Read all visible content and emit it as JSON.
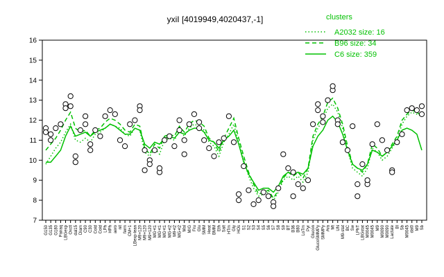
{
  "chart_data": {
    "type": "line",
    "title": "yxiI [4019949,4020437,-1]",
    "xlabel": "",
    "ylabel": "",
    "ylim": [
      7,
      16
    ],
    "yticks": [
      7,
      8,
      9,
      10,
      11,
      12,
      13,
      14,
      15,
      16
    ],
    "x_tick_labels": [
      "G150",
      "G135",
      "G180",
      "Pairaq",
      "LBGexp",
      "Oxctl",
      "dal15",
      "Diam",
      "C90",
      "C30",
      "Cold",
      "Cold",
      "LPh",
      "HPh",
      "aero",
      "nit",
      "ferm",
      "CM+1",
      "LBexp-lean",
      "M9+120",
      "M9+120",
      "M9+120",
      "MG+t1",
      "MG+t1",
      "MG+t1",
      "MG+t2",
      "M9+t2",
      "MG+t2",
      "Mal",
      "M/G",
      "Fru",
      "Glu",
      "SMM",
      "Heat",
      "BMM",
      "Eth",
      "Salt",
      "HTm",
      "Gly",
      "HOs",
      "S1",
      "S2",
      "S3",
      "S4",
      "S5",
      "S6",
      "S7",
      "S8",
      "S9",
      "BT",
      "B36",
      "B80",
      "LoTm",
      "Pyr",
      "Glucon",
      "GlucoSMMPy",
      "SMMPy",
      "Ara",
      "Mt",
      "UN",
      "M9-stat",
      "BC",
      "Sw",
      "LPhT",
      "LBGstat",
      "M0045",
      "M0045",
      "M9",
      "M0090",
      "M0090",
      "Lactate",
      "BI",
      "Sb",
      "M0045",
      "dal0",
      "M9",
      "Sb"
    ],
    "series": [
      {
        "name": "A2032 size: 16",
        "style": "dotted",
        "color": "#00c000",
        "values": [
          9.8,
          10.2,
          10.6,
          10.9,
          11.4,
          11.8,
          11.0,
          10.9,
          11.1,
          10.9,
          11.3,
          11.4,
          11.6,
          11.8,
          11.7,
          11.6,
          11.3,
          11.2,
          11.6,
          11.5,
          10.4,
          10.2,
          10.6,
          10.3,
          11.0,
          11.1,
          11.0,
          11.5,
          11.2,
          11.6,
          11.8,
          11.7,
          11.5,
          10.9,
          10.7,
          10.2,
          10.9,
          11.3,
          11.8,
          10.9,
          10.0,
          9.2,
          8.6,
          8.2,
          8.3,
          8.4,
          8.0,
          8.4,
          9.0,
          9.2,
          9.0,
          9.2,
          8.9,
          9.4,
          11.0,
          11.6,
          12.0,
          12.6,
          12.8,
          12.4,
          11.6,
          10.5,
          9.6,
          9.4,
          9.2,
          9.6,
          10.6,
          10.4,
          10.0,
          10.2,
          10.6,
          11.0,
          11.8,
          12.2,
          12.4,
          12.3,
          12.2
        ]
      },
      {
        "name": "B96 size: 34",
        "style": "dashed",
        "color": "#00c000",
        "values": [
          10.5,
          10.8,
          11.1,
          11.5,
          12.0,
          12.4,
          11.6,
          11.4,
          11.5,
          11.2,
          11.5,
          11.6,
          11.9,
          12.1,
          12.0,
          11.8,
          11.5,
          11.4,
          11.8,
          11.7,
          10.6,
          10.3,
          10.8,
          10.6,
          11.2,
          11.3,
          11.2,
          11.7,
          11.4,
          11.8,
          12.0,
          11.9,
          11.7,
          11.1,
          10.9,
          10.4,
          11.1,
          11.6,
          12.1,
          11.1,
          10.2,
          9.4,
          8.8,
          8.3,
          8.4,
          8.5,
          8.1,
          8.5,
          9.1,
          9.4,
          9.2,
          9.4,
          9.1,
          9.6,
          11.2,
          11.8,
          12.2,
          12.9,
          13.1,
          12.6,
          11.8,
          10.7,
          9.8,
          9.6,
          9.4,
          9.8,
          10.8,
          10.6,
          10.2,
          10.4,
          10.8,
          11.2,
          12.0,
          12.3,
          12.5,
          12.4,
          12.2
        ]
      },
      {
        "name": "C6 size: 359",
        "style": "solid",
        "color": "#00c000",
        "values": [
          9.9,
          9.9,
          10.2,
          10.5,
          11.2,
          11.7,
          11.2,
          11.3,
          11.4,
          11.2,
          11.4,
          11.5,
          11.6,
          11.8,
          11.7,
          11.5,
          11.3,
          11.3,
          11.6,
          11.5,
          10.8,
          10.6,
          10.9,
          10.8,
          11.1,
          11.2,
          11.1,
          11.4,
          11.3,
          11.5,
          11.6,
          11.6,
          11.4,
          11.0,
          10.9,
          10.6,
          11.0,
          11.2,
          11.5,
          10.8,
          9.9,
          9.3,
          8.9,
          8.5,
          8.6,
          8.6,
          8.4,
          8.7,
          9.2,
          9.4,
          9.3,
          9.4,
          9.3,
          9.6,
          10.7,
          11.2,
          11.5,
          12.0,
          12.2,
          11.9,
          11.3,
          10.5,
          9.8,
          9.6,
          9.5,
          9.8,
          10.5,
          10.4,
          10.2,
          10.4,
          10.7,
          11.0,
          11.5,
          11.6,
          11.5,
          11.3,
          10.5
        ]
      }
    ],
    "points": [
      {
        "x": 0,
        "y": 11.6
      },
      {
        "x": 0,
        "y": 11.4
      },
      {
        "x": 1,
        "y": 11.0
      },
      {
        "x": 1,
        "y": 11.3
      },
      {
        "x": 2,
        "y": 11.6
      },
      {
        "x": 3,
        "y": 11.8
      },
      {
        "x": 4,
        "y": 12.8
      },
      {
        "x": 4,
        "y": 12.6
      },
      {
        "x": 5,
        "y": 13.2
      },
      {
        "x": 5,
        "y": 12.7
      },
      {
        "x": 6,
        "y": 10.2
      },
      {
        "x": 6,
        "y": 9.9
      },
      {
        "x": 7,
        "y": 11.5
      },
      {
        "x": 8,
        "y": 11.8
      },
      {
        "x": 8,
        "y": 12.2
      },
      {
        "x": 9,
        "y": 10.8
      },
      {
        "x": 9,
        "y": 10.5
      },
      {
        "x": 10,
        "y": 11.5
      },
      {
        "x": 11,
        "y": 11.2
      },
      {
        "x": 12,
        "y": 12.2
      },
      {
        "x": 13,
        "y": 12.5
      },
      {
        "x": 14,
        "y": 12.3
      },
      {
        "x": 15,
        "y": 11.0
      },
      {
        "x": 16,
        "y": 10.7
      },
      {
        "x": 17,
        "y": 11.8
      },
      {
        "x": 18,
        "y": 12.0
      },
      {
        "x": 19,
        "y": 12.7
      },
      {
        "x": 19,
        "y": 12.5
      },
      {
        "x": 20,
        "y": 10.5
      },
      {
        "x": 20,
        "y": 9.5
      },
      {
        "x": 21,
        "y": 10.0
      },
      {
        "x": 21,
        "y": 9.8
      },
      {
        "x": 22,
        "y": 10.5
      },
      {
        "x": 23,
        "y": 9.4
      },
      {
        "x": 23,
        "y": 9.6
      },
      {
        "x": 24,
        "y": 11.0
      },
      {
        "x": 25,
        "y": 11.2
      },
      {
        "x": 26,
        "y": 10.7
      },
      {
        "x": 27,
        "y": 12.0
      },
      {
        "x": 27,
        "y": 11.5
      },
      {
        "x": 28,
        "y": 11.0
      },
      {
        "x": 28,
        "y": 10.3
      },
      {
        "x": 29,
        "y": 11.8
      },
      {
        "x": 30,
        "y": 12.3
      },
      {
        "x": 31,
        "y": 11.9
      },
      {
        "x": 31,
        "y": 11.6
      },
      {
        "x": 32,
        "y": 11.0
      },
      {
        "x": 33,
        "y": 10.6
      },
      {
        "x": 34,
        "y": 10.2
      },
      {
        "x": 35,
        "y": 10.9
      },
      {
        "x": 36,
        "y": 11.1
      },
      {
        "x": 37,
        "y": 12.2
      },
      {
        "x": 38,
        "y": 10.9
      },
      {
        "x": 39,
        "y": 8.0
      },
      {
        "x": 39,
        "y": 8.3
      },
      {
        "x": 40,
        "y": 9.7
      },
      {
        "x": 41,
        "y": 8.5
      },
      {
        "x": 42,
        "y": 7.8
      },
      {
        "x": 43,
        "y": 8.0
      },
      {
        "x": 44,
        "y": 8.4
      },
      {
        "x": 45,
        "y": 8.2
      },
      {
        "x": 46,
        "y": 7.9
      },
      {
        "x": 46,
        "y": 7.7
      },
      {
        "x": 47,
        "y": 8.6
      },
      {
        "x": 48,
        "y": 10.3
      },
      {
        "x": 49,
        "y": 9.6
      },
      {
        "x": 50,
        "y": 9.4
      },
      {
        "x": 50,
        "y": 8.2
      },
      {
        "x": 51,
        "y": 8.8
      },
      {
        "x": 52,
        "y": 8.6
      },
      {
        "x": 53,
        "y": 9.0
      },
      {
        "x": 54,
        "y": 11.8
      },
      {
        "x": 55,
        "y": 12.5
      },
      {
        "x": 55,
        "y": 12.8
      },
      {
        "x": 56,
        "y": 12.2
      },
      {
        "x": 56,
        "y": 11.9
      },
      {
        "x": 57,
        "y": 13.0
      },
      {
        "x": 58,
        "y": 13.5
      },
      {
        "x": 58,
        "y": 13.7
      },
      {
        "x": 59,
        "y": 12.0
      },
      {
        "x": 59,
        "y": 11.8
      },
      {
        "x": 60,
        "y": 10.9
      },
      {
        "x": 61,
        "y": 10.5
      },
      {
        "x": 62,
        "y": 11.7
      },
      {
        "x": 63,
        "y": 8.2
      },
      {
        "x": 63,
        "y": 8.8
      },
      {
        "x": 64,
        "y": 9.8
      },
      {
        "x": 65,
        "y": 8.8
      },
      {
        "x": 65,
        "y": 9.0
      },
      {
        "x": 66,
        "y": 10.8
      },
      {
        "x": 67,
        "y": 11.8
      },
      {
        "x": 68,
        "y": 11.0
      },
      {
        "x": 69,
        "y": 10.5
      },
      {
        "x": 70,
        "y": 9.5
      },
      {
        "x": 70,
        "y": 9.4
      },
      {
        "x": 71,
        "y": 10.9
      },
      {
        "x": 72,
        "y": 11.3
      },
      {
        "x": 73,
        "y": 12.5
      },
      {
        "x": 74,
        "y": 12.6
      },
      {
        "x": 75,
        "y": 12.5
      },
      {
        "x": 76,
        "y": 12.7
      },
      {
        "x": 76,
        "y": 12.3
      }
    ],
    "legend": {
      "title": "clusters",
      "position": "top-right",
      "items": [
        "A2032 size: 16",
        "B96 size: 34",
        "C6 size: 359"
      ]
    },
    "grid": false,
    "colors": {
      "series": "#00c000",
      "points_fill": "#ffffff",
      "points_stroke": "#000000"
    }
  }
}
